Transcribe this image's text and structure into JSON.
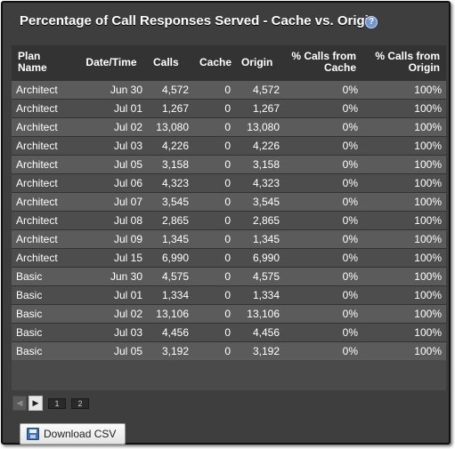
{
  "title": "Percentage of Call Responses Served - Cache vs. Origin",
  "table": {
    "headers": {
      "plan": "Plan Name",
      "date": "Date/Time",
      "calls": "Calls",
      "cache": "Cache",
      "origin": "Origin",
      "pct_cache": "% Calls from Cache",
      "pct_origin": "% Calls from Origin"
    },
    "rows": [
      {
        "plan": "Architect",
        "date": "Jun 30",
        "calls": "4,572",
        "cache": "0",
        "origin": "4,572",
        "pct_cache": "0%",
        "pct_origin": "100%"
      },
      {
        "plan": "Architect",
        "date": "Jul 01",
        "calls": "1,267",
        "cache": "0",
        "origin": "1,267",
        "pct_cache": "0%",
        "pct_origin": "100%"
      },
      {
        "plan": "Architect",
        "date": "Jul 02",
        "calls": "13,080",
        "cache": "0",
        "origin": "13,080",
        "pct_cache": "0%",
        "pct_origin": "100%"
      },
      {
        "plan": "Architect",
        "date": "Jul 03",
        "calls": "4,226",
        "cache": "0",
        "origin": "4,226",
        "pct_cache": "0%",
        "pct_origin": "100%"
      },
      {
        "plan": "Architect",
        "date": "Jul 05",
        "calls": "3,158",
        "cache": "0",
        "origin": "3,158",
        "pct_cache": "0%",
        "pct_origin": "100%"
      },
      {
        "plan": "Architect",
        "date": "Jul 06",
        "calls": "4,323",
        "cache": "0",
        "origin": "4,323",
        "pct_cache": "0%",
        "pct_origin": "100%"
      },
      {
        "plan": "Architect",
        "date": "Jul 07",
        "calls": "3,545",
        "cache": "0",
        "origin": "3,545",
        "pct_cache": "0%",
        "pct_origin": "100%"
      },
      {
        "plan": "Architect",
        "date": "Jul 08",
        "calls": "2,865",
        "cache": "0",
        "origin": "2,865",
        "pct_cache": "0%",
        "pct_origin": "100%"
      },
      {
        "plan": "Architect",
        "date": "Jul 09",
        "calls": "1,345",
        "cache": "0",
        "origin": "1,345",
        "pct_cache": "0%",
        "pct_origin": "100%"
      },
      {
        "plan": "Architect",
        "date": "Jul 15",
        "calls": "6,990",
        "cache": "0",
        "origin": "6,990",
        "pct_cache": "0%",
        "pct_origin": "100%"
      },
      {
        "plan": "Basic",
        "date": "Jun 30",
        "calls": "4,575",
        "cache": "0",
        "origin": "4,575",
        "pct_cache": "0%",
        "pct_origin": "100%"
      },
      {
        "plan": "Basic",
        "date": "Jul 01",
        "calls": "1,334",
        "cache": "0",
        "origin": "1,334",
        "pct_cache": "0%",
        "pct_origin": "100%"
      },
      {
        "plan": "Basic",
        "date": "Jul 02",
        "calls": "13,106",
        "cache": "0",
        "origin": "13,106",
        "pct_cache": "0%",
        "pct_origin": "100%"
      },
      {
        "plan": "Basic",
        "date": "Jul 03",
        "calls": "4,456",
        "cache": "0",
        "origin": "4,456",
        "pct_cache": "0%",
        "pct_origin": "100%"
      },
      {
        "plan": "Basic",
        "date": "Jul 05",
        "calls": "3,192",
        "cache": "0",
        "origin": "3,192",
        "pct_cache": "0%",
        "pct_origin": "100%"
      }
    ]
  },
  "pager": {
    "prev_icon": "arrow-left-icon",
    "next_icon": "arrow-right-icon",
    "pages": [
      "1",
      "2"
    ]
  },
  "download": {
    "label": "Download CSV",
    "icon": "disk-icon"
  },
  "colors": {
    "panel_bg": "#3e3e3e",
    "header_bg": "#333333",
    "row_odd": "#5b5b5b",
    "row_even": "#4d4d4d",
    "help_icon": "#6d98d4"
  }
}
